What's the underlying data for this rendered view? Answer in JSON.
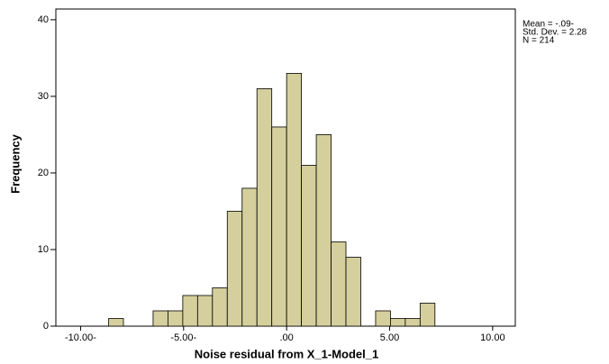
{
  "chart_data": {
    "type": "histogram",
    "bins": [
      -8.64,
      -7.92,
      -7.2,
      -6.48,
      -5.76,
      -5.04,
      -4.32,
      -3.6,
      -2.88,
      -2.16,
      -1.44,
      -0.72,
      0,
      0.72,
      1.44,
      2.16,
      2.88,
      3.6,
      4.32,
      5.04,
      5.76,
      6.48,
      7.2
    ],
    "values": [
      1,
      0,
      0,
      2,
      2,
      4,
      4,
      5,
      15,
      18,
      31,
      26,
      33,
      21,
      25,
      11,
      9,
      0,
      2,
      1,
      1,
      3
    ],
    "color": "#d4cf9c",
    "xlim": [
      -11.2,
      11.1
    ],
    "ylim": [
      0,
      41.4
    ],
    "xticks": [
      {
        "value": -10,
        "label": "-10.00-"
      },
      {
        "value": -5,
        "label": "-5.00-"
      },
      {
        "value": 0,
        "label": ".00"
      },
      {
        "value": 5,
        "label": "5.00"
      },
      {
        "value": 10,
        "label": "10.00"
      }
    ],
    "yticks": [
      0,
      10,
      20,
      30,
      40
    ],
    "x_label": "Noise residual from X_1-Model_1",
    "y_label": "Frequency",
    "annotations": [
      "Mean = -.09-",
      "Std. Dev. = 2.28",
      "N = 214"
    ]
  }
}
